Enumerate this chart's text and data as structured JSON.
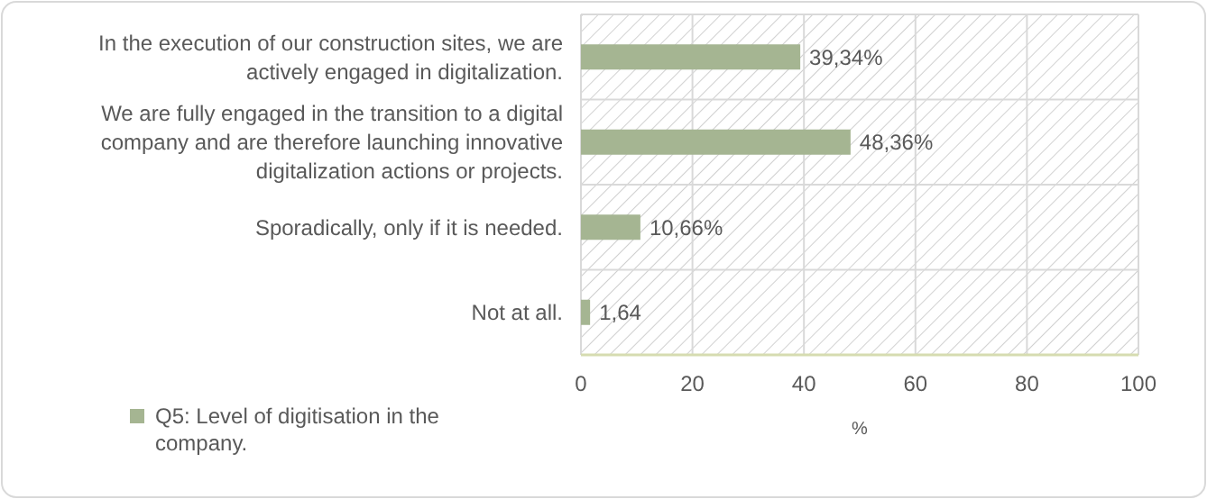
{
  "chart_data": {
    "type": "bar",
    "orientation": "horizontal",
    "categories": [
      "In the execution of our construction sites, we are actively engaged in digitalization.",
      "We are fully engaged in the transition to a digital company and are therefore launching innovative digitalization actions or projects.",
      "Sporadically, only if it is needed.",
      "Not at all."
    ],
    "series": [
      {
        "name": "Q5: Level of digitisation in the company.",
        "color": "#a5b592",
        "values": [
          39.34,
          48.36,
          10.66,
          1.64
        ],
        "value_labels": [
          "39,34%",
          "48,36%",
          "10,66%",
          "1,64"
        ]
      }
    ],
    "xlim": [
      0,
      100
    ],
    "xticks": [
      0,
      20,
      40,
      60,
      80,
      100
    ],
    "xlabel": "%",
    "grid": true,
    "legend": "bottom left"
  }
}
